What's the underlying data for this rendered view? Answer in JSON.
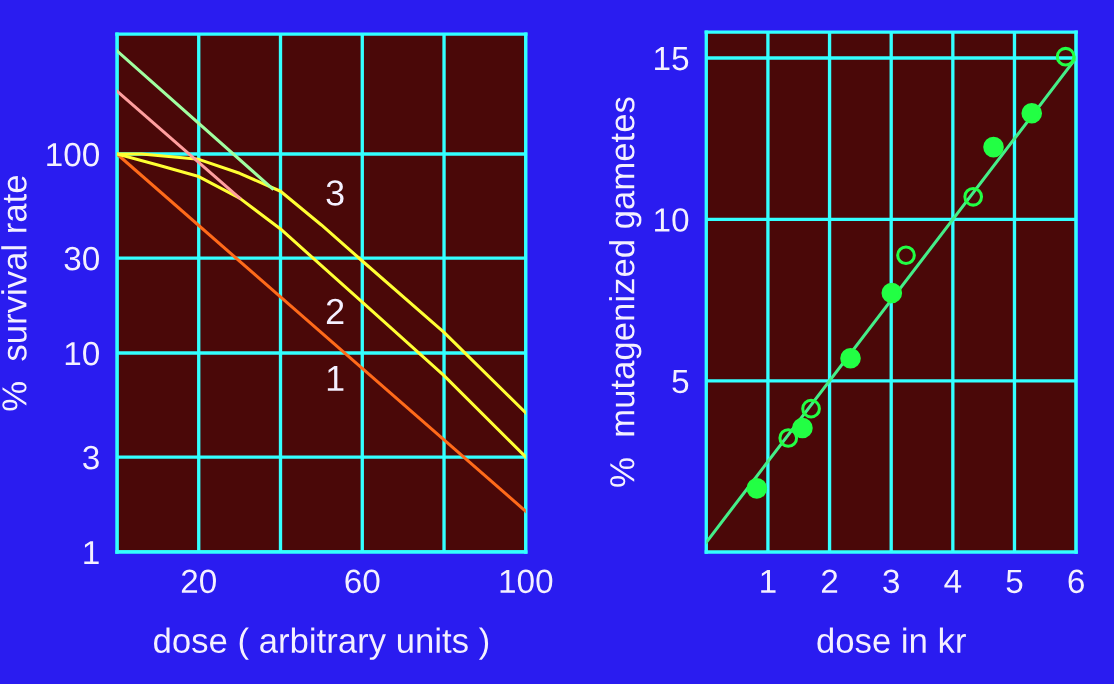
{
  "chart_data": [
    {
      "type": "line",
      "xlabel": "dose ( arbitrary units )",
      "ylabel": "%  survival rate",
      "log": "y",
      "xlim": [
        0,
        100
      ],
      "ylim": [
        1,
        400
      ],
      "xticks": [
        {
          "value": 0,
          "label": null
        },
        20,
        {
          "value": 40,
          "label": null
        },
        60,
        {
          "value": 80,
          "label": null
        },
        100
      ],
      "yticks": [
        1,
        3,
        10,
        30,
        100
      ],
      "grid": true,
      "legend": false,
      "marker": "none",
      "line_style": "solid",
      "series": [
        {
          "name": "1",
          "color": "#ff6a1a",
          "x": [
            0,
            100
          ],
          "values": [
            100,
            1.6
          ]
        },
        {
          "name": "2",
          "color": "#ffff33",
          "x": [
            0,
            10,
            20,
            30,
            40,
            60,
            80,
            100
          ],
          "values": [
            100,
            88,
            77,
            60,
            42,
            18,
            7.7,
            3.0
          ]
        },
        {
          "name": "3",
          "color": "#ffff33",
          "x": [
            0,
            6,
            20,
            30,
            40,
            50,
            60,
            80,
            100
          ],
          "values": [
            100,
            100,
            94,
            80,
            65,
            44,
            29,
            12.7,
            5.0
          ]
        },
        {
          "color": "#ff9f9f",
          "x": [
            0,
            30
          ],
          "values": [
            207,
            60
          ]
        },
        {
          "color": "#a0ffa0",
          "x": [
            0,
            38
          ],
          "values": [
            330,
            67
          ]
        }
      ]
    },
    {
      "type": "scatter",
      "xlabel": "dose in kr",
      "ylabel": "%  mutagenized gametes",
      "xlim": [
        0,
        6
      ],
      "ylim": [
        -0.3,
        15.8
      ],
      "xticks": [
        1,
        2,
        3,
        4,
        5,
        6
      ],
      "yticks": [
        5,
        10,
        15
      ],
      "grid": true,
      "legend": false,
      "series": [
        {
          "type": "line",
          "color": "#44ee88",
          "x": [
            0,
            6
          ],
          "values": [
            0,
            15
          ],
          "marker": "none",
          "line_style": "solid"
        },
        {
          "color": "#22ff44",
          "marker": "circle",
          "x": [
            0.82,
            1.56,
            2.34,
            3.01,
            4.66,
            5.28
          ],
          "values": [
            1.67,
            3.54,
            5.7,
            7.72,
            12.24,
            13.29
          ]
        },
        {
          "color": "#22ff44",
          "marker": "circle",
          "x": [
            1.33,
            1.7,
            3.24,
            4.33,
            5.83
          ],
          "values": [
            3.23,
            4.14,
            8.89,
            10.7,
            15.04
          ]
        }
      ]
    }
  ]
}
